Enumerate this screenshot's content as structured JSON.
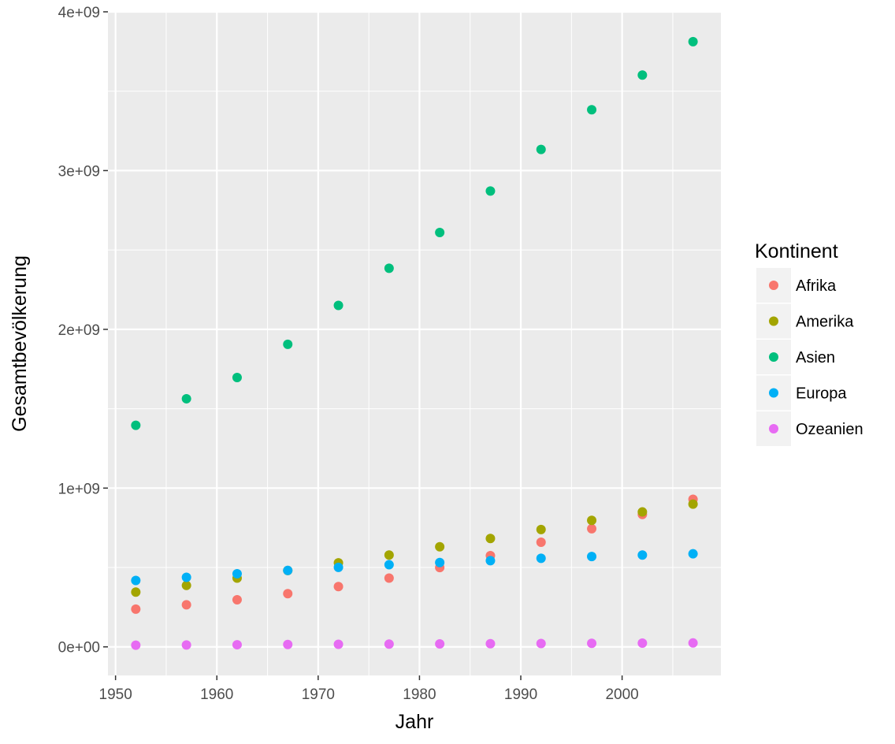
{
  "chart_data": {
    "type": "scatter",
    "title": "",
    "xlabel": "Jahr",
    "ylabel": "Gesamtbevölkerung",
    "xlim": [
      1949.25,
      2009.75
    ],
    "ylim": [
      -180000000,
      4000000000
    ],
    "x_ticks": [
      1950,
      1960,
      1970,
      1980,
      1990,
      2000
    ],
    "y_ticks": [
      0,
      1000000000,
      2000000000,
      3000000000,
      4000000000
    ],
    "y_tick_labels": [
      "0e+00",
      "1e+09",
      "2e+09",
      "3e+09",
      "4e+09"
    ],
    "grid": true,
    "legend_position": "right",
    "legend_title": "Kontinent",
    "x": [
      1952,
      1957,
      1962,
      1967,
      1972,
      1977,
      1982,
      1987,
      1992,
      1997,
      2002,
      2007
    ],
    "series": [
      {
        "name": "Afrika",
        "color": "#F8766D",
        "values": [
          237600000,
          264800000,
          296500000,
          335300000,
          379900000,
          433100000,
          499300000,
          574800000,
          659100000,
          743800000,
          833700000,
          929500000
        ]
      },
      {
        "name": "Amerika",
        "color": "#A3A500",
        "values": [
          345200000,
          386900000,
          433300000,
          480700000,
          529400000,
          578100000,
          630300000,
          682800000,
          739300000,
          797000000,
          849800000,
          898900000
        ]
      },
      {
        "name": "Asien",
        "color": "#00BF7D",
        "values": [
          1395400000,
          1562800000,
          1696400000,
          1905700000,
          2150900000,
          2384500000,
          2610100000,
          2871200000,
          3133300000,
          3383300000,
          3601800000,
          3811900000
        ]
      },
      {
        "name": "Europa",
        "color": "#00B0F6",
        "values": [
          418100000,
          437900000,
          460400000,
          481200000,
          500600000,
          517200000,
          531300000,
          543100000,
          558000000,
          568900000,
          578200000,
          586100000
        ]
      },
      {
        "name": "Ozeanien",
        "color": "#E76BF3",
        "values": [
          10700000,
          11900000,
          13300000,
          14700000,
          16100000,
          17300000,
          18400000,
          19600000,
          20900000,
          22200000,
          23500000,
          24500000
        ]
      }
    ]
  }
}
